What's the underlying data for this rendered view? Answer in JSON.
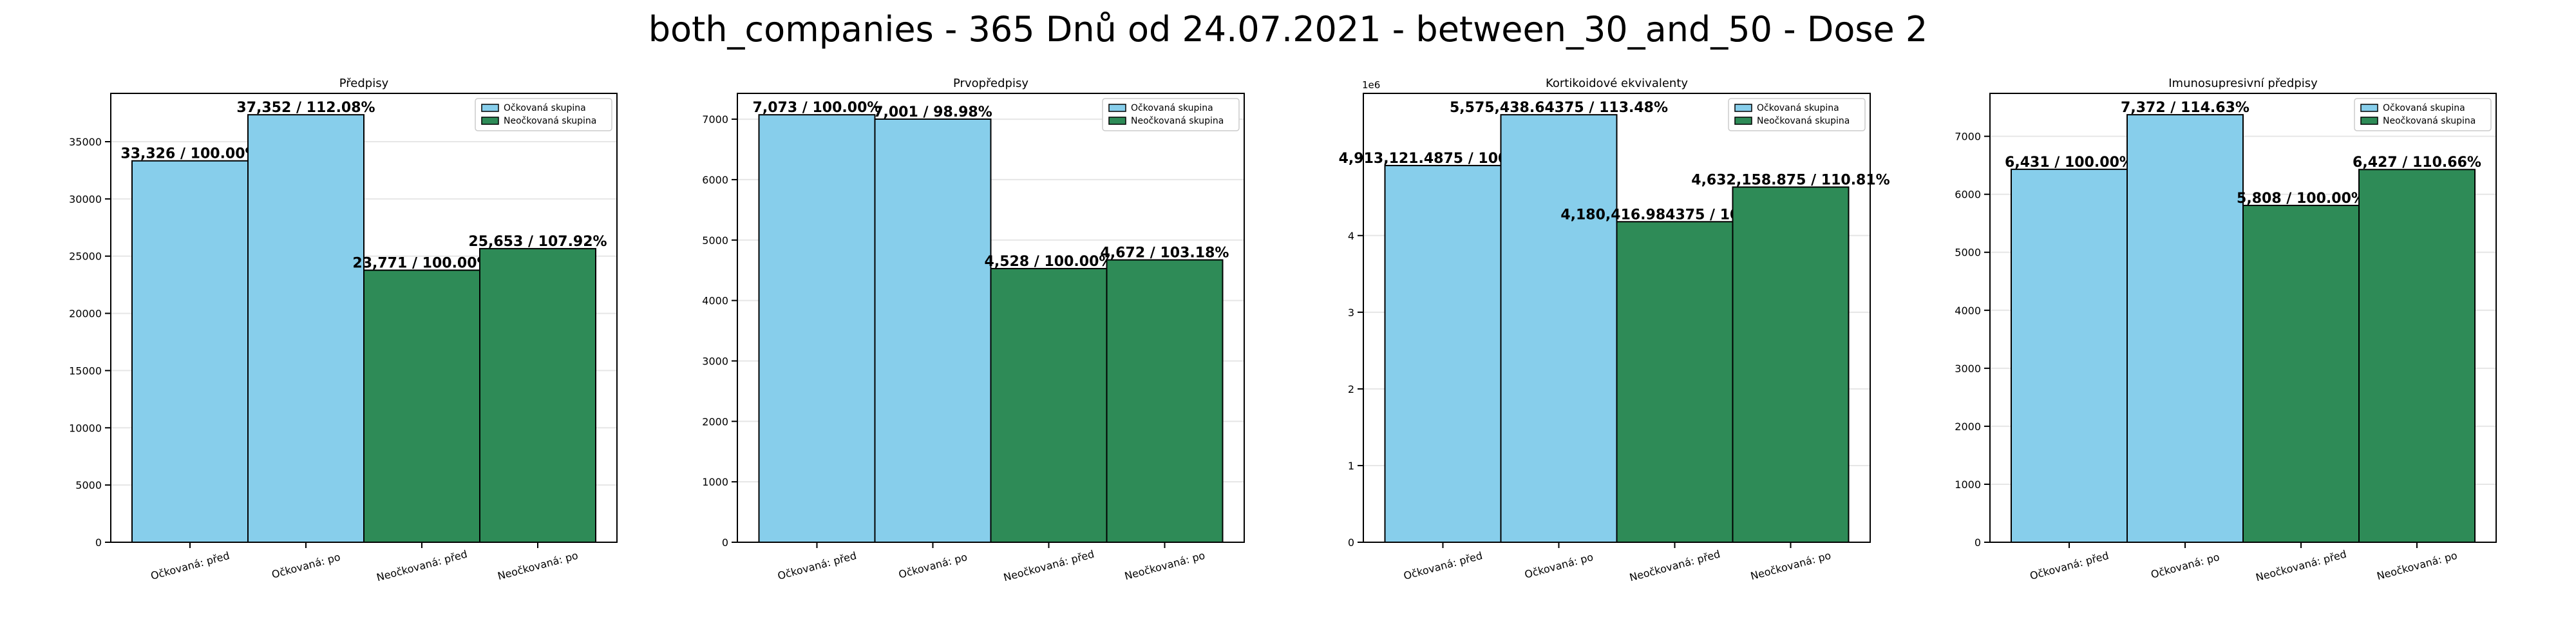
{
  "figure": {
    "suptitle": "both_companies - 365 Dnů od 24.07.2021 - between_30_and_50 - Dose 2"
  },
  "colors": {
    "vaccinated": "#87ceeb",
    "unvaccinated": "#2e8b57",
    "edge": "#000000",
    "grid": "#e6e6e6"
  },
  "chart_data": [
    {
      "type": "bar",
      "title": "Předpisy",
      "categories": [
        "Očkovaná: před",
        "Očkovaná: po",
        "Neočkovaná: před",
        "Neočkovaná: po"
      ],
      "values": [
        33326,
        37352,
        23771,
        25653
      ],
      "value_labels": [
        "33,326 / 100.00%",
        "37,352 / 112.08%",
        "23,771 / 100.00%",
        "25,653 / 107.92%"
      ],
      "bar_groups": [
        "vaccinated",
        "vaccinated",
        "unvaccinated",
        "unvaccinated"
      ],
      "legend": [
        "Očkovaná skupina",
        "Neočkovaná skupina"
      ],
      "legend_position": "top-right",
      "ylim": [
        0,
        39220
      ],
      "yticks": [
        0,
        5000,
        10000,
        15000,
        20000,
        25000,
        30000,
        35000
      ],
      "ytick_labels": [
        "0",
        "5000",
        "10000",
        "15000",
        "20000",
        "25000",
        "30000",
        "35000"
      ],
      "scale_label": "",
      "grid": true
    },
    {
      "type": "bar",
      "title": "Prvopředpisy",
      "categories": [
        "Očkovaná: před",
        "Očkovaná: po",
        "Neočkovaná: před",
        "Neočkovaná: po"
      ],
      "values": [
        7073,
        7001,
        4528,
        4672
      ],
      "value_labels": [
        "7,073 / 100.00%",
        "7,001 / 98.98%",
        "4,528 / 100.00%",
        "4,672 / 103.18%"
      ],
      "bar_groups": [
        "vaccinated",
        "vaccinated",
        "unvaccinated",
        "unvaccinated"
      ],
      "legend": [
        "Očkovaná skupina",
        "Neočkovaná skupina"
      ],
      "legend_position": "top-right",
      "ylim": [
        0,
        7427
      ],
      "yticks": [
        0,
        1000,
        2000,
        3000,
        4000,
        5000,
        6000,
        7000
      ],
      "ytick_labels": [
        "0",
        "1000",
        "2000",
        "3000",
        "4000",
        "5000",
        "6000",
        "7000"
      ],
      "scale_label": "",
      "grid": true
    },
    {
      "type": "bar",
      "title": "Kortikoidové ekvivalenty",
      "categories": [
        "Očkovaná: před",
        "Očkovaná: po",
        "Neočkovaná: před",
        "Neočkovaná: po"
      ],
      "values": [
        4913121.4875,
        5575438.64375,
        4180416.984375,
        4632158.875
      ],
      "value_labels": [
        "4,913,121.4875 / 100.00%",
        "5,575,438.64375 / 113.48%",
        "4,180,416.984375 / 100.00%",
        "4,632,158.875 / 110.81%"
      ],
      "bar_groups": [
        "vaccinated",
        "vaccinated",
        "unvaccinated",
        "unvaccinated"
      ],
      "legend": [
        "Očkovaná skupina",
        "Neočkovaná skupina"
      ],
      "legend_position": "top-right",
      "ylim": [
        0,
        5854210
      ],
      "yticks": [
        0,
        1000000,
        2000000,
        3000000,
        4000000
      ],
      "ytick_labels": [
        "0",
        "1",
        "2",
        "3",
        "4"
      ],
      "scale_label": "1e6",
      "grid": true
    },
    {
      "type": "bar",
      "title": "Imunosupresivní předpisy",
      "categories": [
        "Očkovaná: před",
        "Očkovaná: po",
        "Neočkovaná: před",
        "Neočkovaná: po"
      ],
      "values": [
        6431,
        7372,
        5808,
        6427
      ],
      "value_labels": [
        "6,431 / 100.00%",
        "7,372 / 114.63%",
        "5,808 / 100.00%",
        "6,427 / 110.66%"
      ],
      "bar_groups": [
        "vaccinated",
        "vaccinated",
        "unvaccinated",
        "unvaccinated"
      ],
      "legend": [
        "Očkovaná skupina",
        "Neočkovaná skupina"
      ],
      "legend_position": "top-right",
      "ylim": [
        0,
        7740
      ],
      "yticks": [
        0,
        1000,
        2000,
        3000,
        4000,
        5000,
        6000,
        7000
      ],
      "ytick_labels": [
        "0",
        "1000",
        "2000",
        "3000",
        "4000",
        "5000",
        "6000",
        "7000"
      ],
      "scale_label": "",
      "grid": true
    }
  ]
}
